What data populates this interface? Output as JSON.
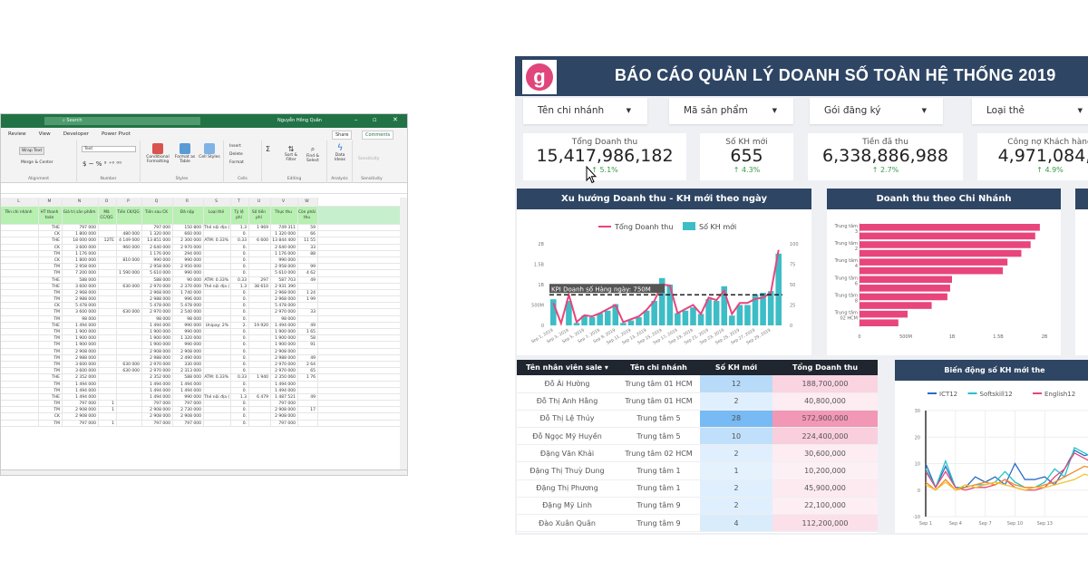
{
  "excel": {
    "search_placeholder": "Search",
    "user": "Nguyễn Hồng Quân",
    "tabs": [
      "Review",
      "View",
      "Developer",
      "Power Pivot"
    ],
    "share": "Share",
    "comments": "Comments",
    "ribbon": {
      "wrap_text": "Wrap Text",
      "merge_center": "Merge & Center",
      "number_format": "Text",
      "conditional_formatting": "Conditional Formatting",
      "format_as_table": "Format as Table",
      "cell_styles": "Cell Styles",
      "insert": "Insert",
      "delete": "Delete",
      "format": "Format",
      "sort_filter": "Sort & Filter",
      "find_select": "Find & Select",
      "data": "Data Ideas",
      "sensitivity": "Sensitivity",
      "groups": [
        "Alignment",
        "Number",
        "Styles",
        "Cells",
        "Editing",
        "Analysis",
        "Sensitivity"
      ]
    },
    "columns": [
      "L",
      "M",
      "N",
      "O",
      "P",
      "Q",
      "R",
      "S",
      "T",
      "U",
      "V",
      "W"
    ],
    "headers": [
      "Tên chi nhánh",
      "HT thanh toán",
      "Giá trị sản phẩm",
      "Mã CC/QG",
      "Tiền CK/QG",
      "Tiền sau CK",
      "Đã nộp",
      "Loại thẻ",
      "Tỷ lệ phí",
      "Số tiền phí",
      "Thực thu",
      "Còn phải thu"
    ],
    "rows": [
      [
        "",
        "THE",
        "797 000",
        "",
        "",
        "797 000",
        "150 800",
        "Thẻ nội địa (",
        "1.3",
        "1 969",
        "749 311",
        "59"
      ],
      [
        "",
        "CK",
        "1 800 000",
        "",
        "480 000",
        "1 320 000",
        "660 000",
        "",
        "0.",
        "",
        "1 320 000",
        "66"
      ],
      [
        "",
        "THE",
        "18 000 000",
        "12TE",
        "4 149 000",
        "13 851 000",
        "2 300 000",
        "ATM: 0.33%",
        "0.33",
        "6 600",
        "13 844 400",
        "11 55"
      ],
      [
        "",
        "CK",
        "3 600 000",
        "",
        "960 000",
        "2 640 000",
        "2 970 000",
        "",
        "0.",
        "",
        "2 640 000",
        "33"
      ],
      [
        "",
        "TM",
        "1 176 000",
        "",
        "",
        "1 176 000",
        "294 000",
        "",
        "0.",
        "",
        "1 176 000",
        "88"
      ],
      [
        "",
        "CK",
        "1 800 000",
        "",
        "810 000",
        "990 000",
        "990 000",
        "",
        "0.",
        "",
        "990 000",
        ""
      ],
      [
        "",
        "TM",
        "2 958 000",
        "",
        "",
        "2 958 000",
        "2 950 000",
        "",
        "0.",
        "",
        "2 958 000",
        "99"
      ],
      [
        "",
        "TM",
        "7 200 000",
        "",
        "1 590 000",
        "5 610 000",
        "990 000",
        "",
        "0.",
        "",
        "5 610 000",
        "4 62"
      ],
      [
        "",
        "THE",
        "588 000",
        "",
        "",
        "588 000",
        "90 000",
        "ATM: 0.33%",
        "0.33",
        "297",
        "587 703",
        "49"
      ],
      [
        "",
        "THE",
        "3 600 000",
        "",
        "630 000",
        "2 970 000",
        "2 370 000",
        "Thẻ nội địa (",
        "1.3",
        "38 610",
        "2 931 390",
        ""
      ],
      [
        "",
        "TM",
        "2 968 000",
        "",
        "",
        "2 968 000",
        "1 740 000",
        "",
        "0.",
        "",
        "2 968 000",
        "1 24"
      ],
      [
        "",
        "TM",
        "2 988 000",
        "",
        "",
        "2 988 000",
        "996 000",
        "",
        "0.",
        "",
        "2 968 000",
        "1 99"
      ],
      [
        "",
        "CK",
        "5 478 000",
        "",
        "",
        "5 478 000",
        "5 478 000",
        "",
        "0.",
        "",
        "5 478 000",
        ""
      ],
      [
        "",
        "TM",
        "3 600 000",
        "",
        "630 000",
        "2 970 000",
        "2 540 000",
        "",
        "0.",
        "",
        "2 970 000",
        "33"
      ],
      [
        "",
        "TM",
        "98 000",
        "",
        "",
        "98 000",
        "98 000",
        "",
        "0.",
        "",
        "98 000",
        ""
      ],
      [
        "",
        "THE",
        "1 494 000",
        "",
        "",
        "1 494 000",
        "990 000",
        "Unipay: 2%",
        "2.",
        "19 920",
        "1 494 000",
        "49"
      ],
      [
        "",
        "TM",
        "1 900 000",
        "",
        "",
        "1 900 000",
        "990 000",
        "",
        "0.",
        "",
        "1 900 000",
        "1 65"
      ],
      [
        "",
        "TM",
        "1 900 000",
        "",
        "",
        "1 900 000",
        "1 320 000",
        "",
        "0.",
        "",
        "1 900 000",
        "58"
      ],
      [
        "",
        "TM",
        "1 900 000",
        "",
        "",
        "1 900 000",
        "990 000",
        "",
        "0.",
        "",
        "1 900 000",
        "91"
      ],
      [
        "",
        "TM",
        "2 908 000",
        "",
        "",
        "2 908 000",
        "2 908 000",
        "",
        "0.",
        "",
        "2 908 000",
        ""
      ],
      [
        "",
        "TM",
        "2 988 000",
        "",
        "",
        "2 988 000",
        "2 490 000",
        "",
        "0.",
        "",
        "2 988 000",
        "49"
      ],
      [
        "",
        "TM",
        "3 600 000",
        "",
        "630 000",
        "2 970 000",
        "330 000",
        "",
        "0.",
        "",
        "2 970 000",
        "2 64"
      ],
      [
        "",
        "TM",
        "3 600 000",
        "",
        "630 000",
        "2 970 000",
        "2 313 000",
        "",
        "0.",
        "",
        "2 970 000",
        "65"
      ],
      [
        "",
        "THE",
        "2 352 000",
        "",
        "",
        "2 352 000",
        "588 000",
        "ATM: 0.33%",
        "0.33",
        "1 940",
        "2 350 060",
        "1 76"
      ],
      [
        "",
        "TM",
        "1 494 000",
        "",
        "",
        "1 494 000",
        "1 494 000",
        "",
        "0.",
        "",
        "1 494 000",
        ""
      ],
      [
        "",
        "TM",
        "1 494 000",
        "",
        "",
        "1 494 000",
        "1 494 000",
        "",
        "0.",
        "",
        "1 494 000",
        ""
      ],
      [
        "",
        "THE",
        "1 494 000",
        "",
        "",
        "1 494 000",
        "990 000",
        "Thẻ nội địa (",
        "1.3",
        "6 479",
        "1 487 521",
        "49"
      ],
      [
        "",
        "TM",
        "797 000",
        "1",
        "",
        "797 000",
        "797 000",
        "",
        "0.",
        "",
        "797 000",
        ""
      ],
      [
        "",
        "TM",
        "2 908 000",
        "1",
        "",
        "2 908 000",
        "2 730 000",
        "",
        "0.",
        "",
        "2 908 000",
        "17"
      ],
      [
        "",
        "CK",
        "2 908 000",
        "",
        "",
        "2 908 000",
        "2 908 000",
        "",
        "0.",
        "",
        "2 908 000",
        ""
      ],
      [
        "",
        "TM",
        "797 000",
        "1",
        "",
        "797 000",
        "797 000",
        "",
        "0.",
        "",
        "797 000",
        ""
      ]
    ]
  },
  "dashboard": {
    "title": "BÁO CÁO QUẢN LÝ DOANH SỐ TOÀN HỆ THỐNG 2019",
    "logo_text": "g",
    "brand_color": "#2e4564",
    "accent_color": "#e8457c",
    "bar_color": "#3dbdc6",
    "filters": [
      "Tên chi nhánh",
      "Mã sản phẩm",
      "Gói đăng ký",
      "Loại thẻ"
    ],
    "kpis": [
      {
        "label": "Tổng Doanh thu",
        "value": "15,417,986,182",
        "delta": "↑ 5.1%"
      },
      {
        "label": "Số KH mới",
        "value": "655",
        "delta": "↑ 4.3%"
      },
      {
        "label": "Tiền đã thu",
        "value": "6,338,886,988",
        "delta": "↑ 2.7%"
      },
      {
        "label": "Công nợ Khách hàng",
        "value": "4,971,084,9",
        "delta": "↑ 4.9%"
      }
    ],
    "table": {
      "headers": [
        "Tên nhân viên sale ▾",
        "Tên chi nhánh",
        "Số KH mới",
        "Tổng Doanh thu"
      ],
      "rows": [
        [
          "Đỗ Ái Hường",
          "Trung tâm 01 HCM",
          "12",
          "188,700,000"
        ],
        [
          "Đỗ Thị Anh Hằng",
          "Trung tâm 01 HCM",
          "2",
          "40,800,000"
        ],
        [
          "Đỗ Thị Lệ Thủy",
          "Trung tâm 5",
          "28",
          "572,900,000"
        ],
        [
          "Đỗ Ngọc Mỹ Huyền",
          "Trung tâm 5",
          "10",
          "224,400,000"
        ],
        [
          "Đặng Văn Khải",
          "Trung tâm 02 HCM",
          "2",
          "30,600,000"
        ],
        [
          "Đặng Thị Thuỳ Dung",
          "Trung tâm 1",
          "1",
          "10,200,000"
        ],
        [
          "Đặng Thị Phương",
          "Trung tâm 1",
          "2",
          "45,900,000"
        ],
        [
          "Đặng Mỹ Linh",
          "Trung tâm 9",
          "2",
          "22,100,000"
        ],
        [
          "Đào Xuân Quân",
          "Trung tâm 9",
          "4",
          "112,200,000"
        ]
      ]
    }
  },
  "chart_data": [
    {
      "type": "bar+line",
      "title": "Xu hướng Doanh thu - KH mới theo ngày",
      "legend": [
        "Tổng Doanh thu",
        "Số KH mới"
      ],
      "legend_position": "top",
      "x": [
        "Sep 1, 2019",
        "Sep 2, 2019",
        "Sep 3, 2019",
        "Sep 4, 2019",
        "Sep 5, 2019",
        "Sep 6, 2019",
        "Sep 7, 2019",
        "Sep 8, 2019",
        "Sep 9, 2019",
        "Sep 10, 2019",
        "Sep 11, 2019",
        "Sep 12, 2019",
        "Sep 13, 2019",
        "Sep 14, 2019",
        "Sep 15, 2019",
        "Sep 16, 2019",
        "Sep 17, 2019",
        "Sep 18, 2019",
        "Sep 19, 2019",
        "Sep 20, 2019",
        "Sep 21, 2019",
        "Sep 22, 2019",
        "Sep 23, 2019",
        "Sep 24, 2019",
        "Sep 25, 2019",
        "Sep 26, 2019",
        "Sep 27, 2019",
        "Sep 28, 2019",
        "Sep 29, 2019",
        "Sep 30, 2019"
      ],
      "x_tick_labels": [
        "Sep 1, 2019",
        "Sep 3, 2019",
        "Sep 5, 2019",
        "Sep 7, 2019",
        "Sep 9, 2019",
        "Sep 11, 2019",
        "Sep 13, 2019",
        "Sep 15, 2019",
        "Sep 17, 2019",
        "Sep 19, 2019",
        "Sep 21, 2019",
        "Sep 23, 2019",
        "Sep 25, 2019",
        "Sep 27, 2019",
        "Sep 29, 2019"
      ],
      "line_values": [
        0.55,
        0.05,
        0.75,
        0.08,
        0.25,
        0.22,
        0.3,
        0.4,
        0.5,
        0.08,
        0.15,
        0.22,
        0.38,
        0.6,
        1.0,
        0.98,
        0.3,
        0.4,
        0.5,
        0.28,
        0.68,
        0.62,
        0.85,
        0.28,
        0.55,
        0.55,
        0.65,
        0.68,
        0.8,
        1.85
      ],
      "bar_values": [
        32,
        0,
        30,
        3,
        12,
        10,
        15,
        18,
        26,
        3,
        6,
        10,
        18,
        30,
        58,
        50,
        15,
        18,
        22,
        14,
        32,
        30,
        48,
        12,
        25,
        25,
        38,
        40,
        42,
        88
      ],
      "y_left": {
        "ticks": [
          "0",
          "500M",
          "1B",
          "1.5B",
          "2B"
        ],
        "range": [
          0,
          2
        ],
        "unit": "billion"
      },
      "y_right": {
        "ticks": [
          "0",
          "25",
          "50",
          "75",
          "100"
        ],
        "range": [
          0,
          100
        ]
      },
      "reference_line": {
        "label": "KPI Doanh số Hàng ngày: 750M",
        "value": 0.75
      }
    },
    {
      "type": "bar",
      "orientation": "horizontal",
      "title": "Doanh thu theo Chi Nhánh",
      "categories": [
        "Trung tâm 3",
        "",
        "Trung tâm 2",
        "",
        "Trung tâm 4",
        "",
        "Trung tâm 6",
        "",
        "Trung tâm 8",
        "",
        "Trung tâm 02 HCM",
        ""
      ],
      "values": [
        1.95,
        1.9,
        1.85,
        1.75,
        1.6,
        1.55,
        1.0,
        0.98,
        0.95,
        0.78,
        0.52,
        0.42
      ],
      "x_ticks": [
        "0",
        "500M",
        "1B",
        "1.5B",
        "2B"
      ],
      "xlim": [
        0,
        2
      ],
      "unit": "billion"
    },
    {
      "type": "line",
      "title": "Biến động số KH mới the",
      "x_tick_labels": [
        "Sep 1",
        "Sep 4",
        "Sep 7",
        "Sep 10",
        "Sep 13"
      ],
      "y_ticks": [
        "-10",
        "0",
        "10",
        "20",
        "30"
      ],
      "ylim": [
        -10,
        30
      ],
      "grid": true,
      "series": [
        {
          "name": "ICT12",
          "color": "#2b6cc4",
          "values": [
            10,
            1,
            9,
            1,
            1,
            5,
            3,
            5,
            2,
            10,
            4,
            4,
            5,
            2,
            8,
            15,
            13,
            14
          ]
        },
        {
          "name": "Softskill12",
          "color": "#25c2c9",
          "values": [
            8,
            1,
            11,
            1,
            1,
            2,
            2,
            3,
            7,
            3,
            1,
            1,
            3,
            8,
            5,
            16,
            14,
            12
          ]
        },
        {
          "name": "English12",
          "color": "#e8457c",
          "values": [
            7,
            1,
            7,
            1,
            0,
            1,
            1,
            2,
            4,
            1,
            0,
            0,
            1,
            5,
            8,
            14,
            12,
            10
          ]
        },
        {
          "color": "#f08a2a",
          "values": [
            3,
            0,
            4,
            0,
            1,
            2,
            3,
            2,
            4,
            2,
            1,
            1,
            2,
            3,
            5,
            7,
            9,
            8
          ]
        },
        {
          "color": "#f2c12e",
          "values": [
            2,
            0,
            3,
            0,
            2,
            1,
            2,
            3,
            2,
            1,
            0,
            1,
            1,
            2,
            3,
            4,
            6,
            5
          ]
        }
      ]
    }
  ]
}
